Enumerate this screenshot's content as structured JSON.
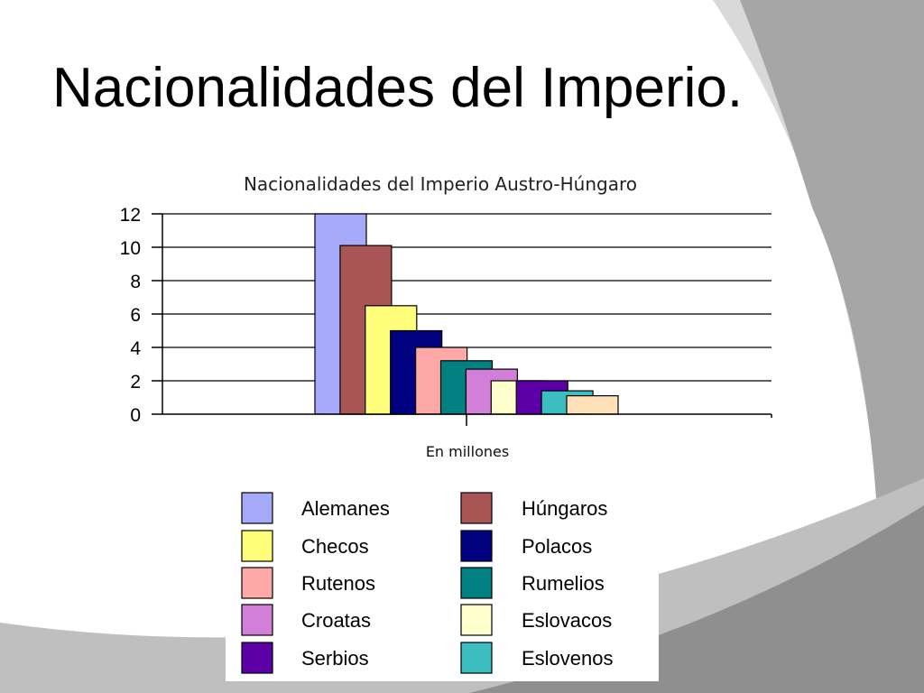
{
  "slide": {
    "title": "Nacionalidades del Imperio."
  },
  "chart_data": {
    "type": "bar",
    "title": "Nacionalidades del Imperio Austro-Húngaro",
    "xlabel": "En millones",
    "ylabel": "",
    "categories": [
      "En millones"
    ],
    "ylim": [
      0,
      12
    ],
    "yticks": [
      0,
      2,
      4,
      6,
      8,
      10,
      12
    ],
    "grid": true,
    "legend_position": "bottom",
    "series": [
      {
        "name": "Alemanes",
        "values": [
          12
        ],
        "color": "#A6AAF8"
      },
      {
        "name": "Húngaros",
        "values": [
          10.1
        ],
        "color": "#AA5555"
      },
      {
        "name": "Checos",
        "values": [
          6.5
        ],
        "color": "#FEFE7A"
      },
      {
        "name": "Polacos",
        "values": [
          5
        ],
        "color": "#000080"
      },
      {
        "name": "Rutenos",
        "values": [
          4
        ],
        "color": "#FEA8A8"
      },
      {
        "name": "Rumelios",
        "values": [
          3.2
        ],
        "color": "#008080"
      },
      {
        "name": "Croatas",
        "values": [
          2.7
        ],
        "color": "#D17FD8"
      },
      {
        "name": "Eslovacos",
        "values": [
          2
        ],
        "color": "#FFFFCC"
      },
      {
        "name": "Serbios",
        "values": [
          2
        ],
        "color": "#5A00A6"
      },
      {
        "name": "Eslovenos",
        "values": [
          1.4
        ],
        "color": "#3CBEC0"
      },
      {
        "name": "",
        "values": [
          1.1
        ],
        "color": "#FFE0B8"
      }
    ]
  }
}
